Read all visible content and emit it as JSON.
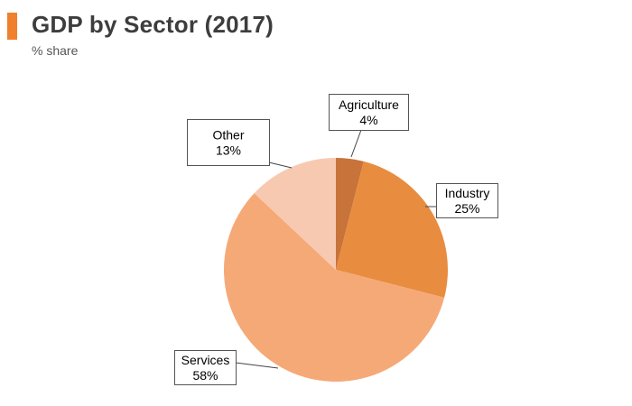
{
  "header": {
    "title": "GDP by Sector (2017)",
    "subtitle": "% share",
    "accent_color": "#f07f2e"
  },
  "chart_data": {
    "type": "pie",
    "title": "GDP by Sector (2017)",
    "subtitle": "% share",
    "unit": "%",
    "slices": [
      {
        "label": "Agriculture",
        "value": 4,
        "display": "4%",
        "color": "#c8733a"
      },
      {
        "label": "Industry",
        "value": 25,
        "display": "25%",
        "color": "#e88c40"
      },
      {
        "label": "Services",
        "value": 58,
        "display": "58%",
        "color": "#f5a977"
      },
      {
        "label": "Other",
        "value": 13,
        "display": "13%",
        "color": "#f8c9b1"
      }
    ]
  }
}
